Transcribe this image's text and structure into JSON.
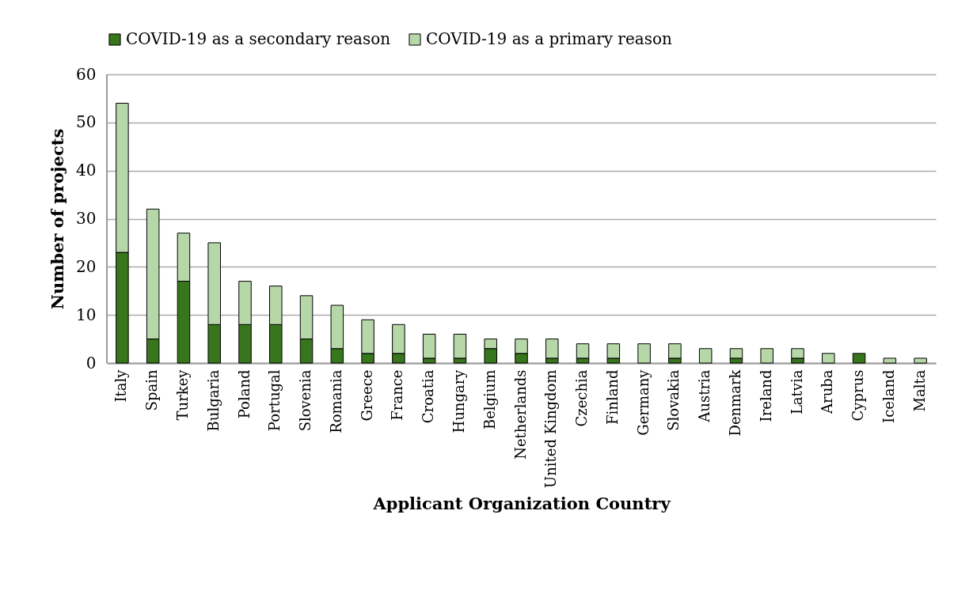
{
  "chart_data": {
    "type": "bar",
    "stacked": true,
    "xlabel": "Applicant Organization Country",
    "ylabel": "Number of projects",
    "categories": [
      "Italy",
      "Spain",
      "Turkey",
      "Bulgaria",
      "Poland",
      "Portugal",
      "Slovenia",
      "Romania",
      "Greece",
      "France",
      "Croatia",
      "Hungary",
      "Belgium",
      "Netherlands",
      "United Kingdom",
      "Czechia",
      "Finland",
      "Germany",
      "Slovakia",
      "Austria",
      "Denmark",
      "Ireland",
      "Latvia",
      "Aruba",
      "Cyprus",
      "Iceland",
      "Malta"
    ],
    "series": [
      {
        "name": "COVID-19 as a secondary reason",
        "color": "#38761d",
        "values": [
          23,
          5,
          17,
          8,
          8,
          8,
          5,
          3,
          2,
          2,
          1,
          1,
          3,
          2,
          1,
          1,
          1,
          0,
          1,
          0,
          1,
          0,
          1,
          0,
          2,
          0,
          0
        ]
      },
      {
        "name": "COVID-19 as a primary reason",
        "color": "#b6d7a8",
        "values": [
          31,
          27,
          10,
          17,
          9,
          8,
          9,
          9,
          7,
          6,
          5,
          5,
          2,
          3,
          4,
          3,
          3,
          4,
          3,
          3,
          2,
          3,
          2,
          2,
          0,
          1,
          1
        ]
      }
    ],
    "ylim": [
      0,
      60
    ],
    "yticks": [
      0,
      10,
      20,
      30,
      40,
      50,
      60
    ],
    "grid": "y",
    "legend": "top"
  }
}
